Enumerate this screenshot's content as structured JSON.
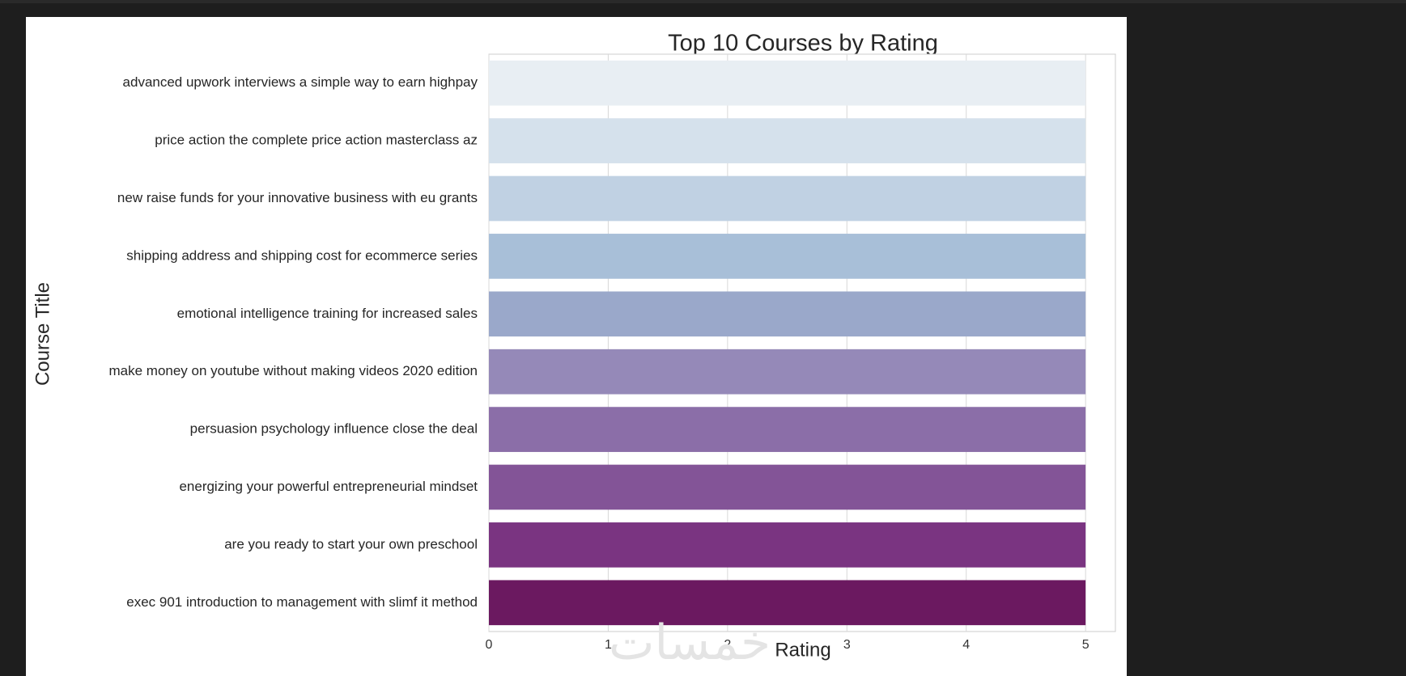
{
  "watermark": "خمسات",
  "chart_data": {
    "type": "bar",
    "orientation": "horizontal",
    "title": "Top 10 Courses by Rating",
    "xlabel": "Rating",
    "ylabel": "Course Title",
    "xlim": [
      0,
      5.25
    ],
    "xticks": [
      "0",
      "1",
      "2",
      "3",
      "4",
      "5"
    ],
    "grid": true,
    "categories": [
      "advanced upwork interviews a simple way to earn highpay",
      "price action the complete price action masterclass az",
      "new raise funds for your innovative business with eu grants",
      "shipping address and shipping cost for ecommerce series",
      "emotional intelligence training for increased sales",
      "make money on youtube without making videos 2020 edition",
      "persuasion psychology  influence  close the deal",
      "energizing your powerful entrepreneurial mindset",
      "are you ready to start your own preschool",
      "exec 901 introduction to management with slimf it method"
    ],
    "values": [
      5,
      5,
      5,
      5,
      5,
      5,
      5,
      5,
      5,
      5
    ],
    "colors": [
      "#e8eef3",
      "#d5e1ec",
      "#c0d1e3",
      "#a8bfd8",
      "#9aa8ca",
      "#9589b8",
      "#8b6ea8",
      "#835497",
      "#7a3481",
      "#6b1960"
    ]
  }
}
